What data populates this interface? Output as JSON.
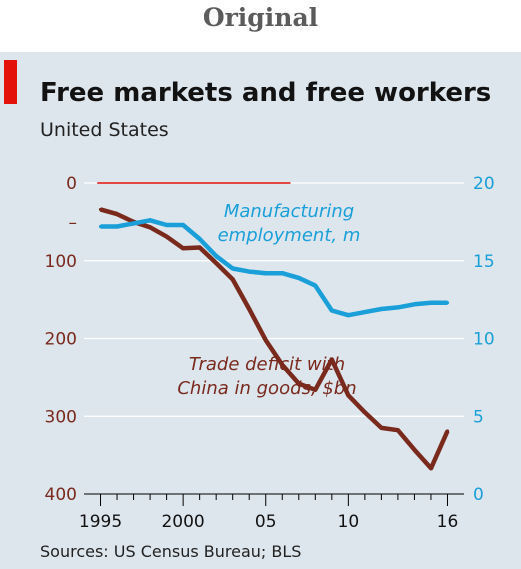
{
  "header": {
    "label": "Original"
  },
  "chart_data": {
    "type": "line",
    "title": "Free markets and free workers",
    "subtitle": "United States",
    "source": "Sources: US Census Bureau; BLS",
    "x_axis": {
      "range": [
        1994,
        2017
      ],
      "ticks": [
        1995,
        2000,
        2005,
        2010,
        2016
      ],
      "tick_labels": [
        "1995",
        "2000",
        "05",
        "10",
        "16"
      ]
    },
    "left_axis": {
      "range": [
        0,
        400
      ],
      "inverted": true,
      "ticks": [
        0,
        50,
        100,
        200,
        300,
        400
      ],
      "tick_labels": [
        "0",
        "–",
        "100",
        "200",
        "300",
        "400"
      ],
      "color": "#7a2a1d"
    },
    "right_axis": {
      "range": [
        0,
        20
      ],
      "ticks": [
        0,
        5,
        10,
        15,
        20
      ],
      "tick_labels": [
        "0",
        "5",
        "10",
        "15",
        "20"
      ],
      "color": "#1a9fd8"
    },
    "zero_line": {
      "from": 1994.8,
      "to": 2006.5,
      "value": 0,
      "color": "#e3120b"
    },
    "series": [
      {
        "name": "Trade deficit with China in goods, $bn",
        "label_lines": [
          "Trade deficit with",
          "China in goods, $bn"
        ],
        "axis": "left",
        "color": "#7a2a1d",
        "x": [
          1995,
          1996,
          1997,
          1998,
          1999,
          2000,
          2001,
          2002,
          2003,
          2004,
          2005,
          2006,
          2007,
          2008,
          2009,
          2010,
          2011,
          2012,
          2013,
          2014,
          2015,
          2016
        ],
        "values": [
          34,
          40,
          50,
          57,
          69,
          84,
          83,
          103,
          124,
          162,
          202,
          234,
          258,
          266,
          227,
          273,
          295,
          315,
          318,
          343,
          367,
          319
        ]
      },
      {
        "name": "Manufacturing employment, m",
        "label_lines": [
          "Manufacturing",
          "employment, m"
        ],
        "axis": "right",
        "color": "#1a9fd8",
        "x": [
          1995,
          1996,
          1997,
          1998,
          1999,
          2000,
          2001,
          2002,
          2003,
          2004,
          2005,
          2006,
          2007,
          2008,
          2009,
          2010,
          2011,
          2012,
          2013,
          2014,
          2015,
          2016
        ],
        "values": [
          17.2,
          17.2,
          17.4,
          17.6,
          17.3,
          17.3,
          16.4,
          15.3,
          14.5,
          14.3,
          14.2,
          14.2,
          13.9,
          13.4,
          11.8,
          11.5,
          11.7,
          11.9,
          12.0,
          12.2,
          12.3,
          12.3
        ]
      }
    ]
  }
}
